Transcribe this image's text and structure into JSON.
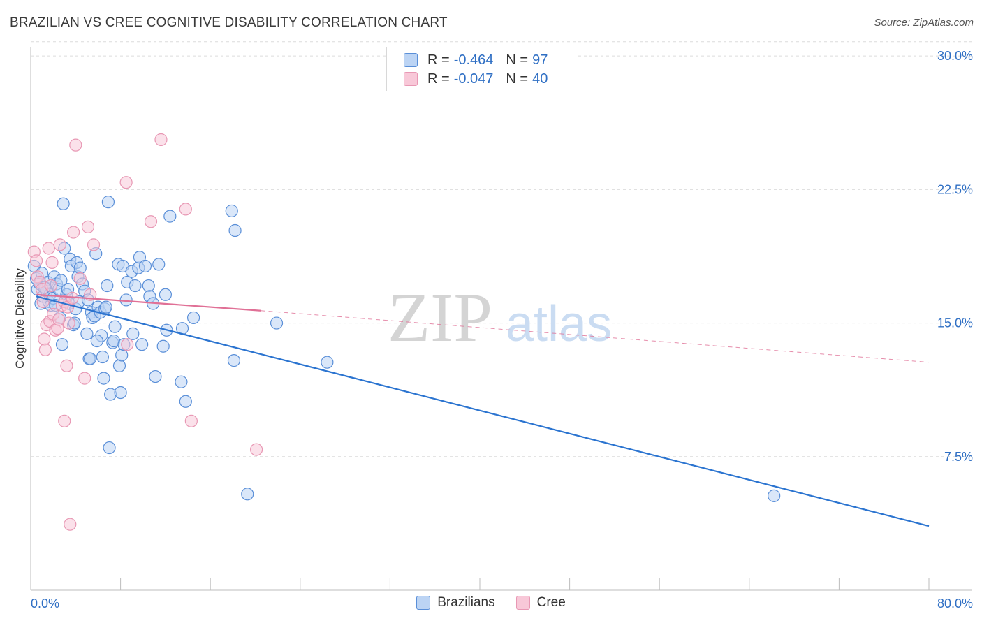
{
  "title": "BRAZILIAN VS CREE COGNITIVE DISABILITY CORRELATION CHART",
  "source": "Source: ZipAtlas.com",
  "watermark": {
    "zip": "ZIP",
    "atlas": "atlas"
  },
  "legend": {
    "rows": [
      {
        "r_label": "R =",
        "r_value": "-0.464",
        "n_label": "N =",
        "n_value": "97"
      },
      {
        "r_label": "R =",
        "r_value": "-0.047",
        "n_label": "N =",
        "n_value": "40"
      }
    ]
  },
  "colors": {
    "blue_fill": "#bcd4f4",
    "blue_stroke": "#5a8fd8",
    "blue_line": "#2b74d0",
    "pink_fill": "#f8c8d8",
    "pink_stroke": "#e898b4",
    "pink_line": "#e07096",
    "tick_text": "#2f6fc4",
    "grid": "#dcdcdc"
  },
  "chart_data": {
    "type": "scatter",
    "title": "BRAZILIAN VS CREE COGNITIVE DISABILITY CORRELATION CHART",
    "xlabel": "",
    "ylabel": "Cognitive Disability",
    "xlim": [
      0,
      80
    ],
    "ylim": [
      0,
      31
    ],
    "x_tick_labels": [
      "0.0%",
      "80.0%"
    ],
    "y_ticks": [
      7.5,
      15.0,
      22.5,
      30.0
    ],
    "y_tick_labels": [
      "7.5%",
      "15.0%",
      "22.5%",
      "30.0%"
    ],
    "grid": true,
    "legend_position": "top-center",
    "series": [
      {
        "name": "Brazilians",
        "r": -0.464,
        "n": 97,
        "trend": {
          "x": [
            0.5,
            80
          ],
          "y": [
            16.5,
            3.6
          ]
        },
        "points": [
          [
            0.3,
            18.2
          ],
          [
            0.5,
            17.5
          ],
          [
            0.6,
            16.9
          ],
          [
            0.8,
            17.2
          ],
          [
            0.9,
            16.1
          ],
          [
            1.0,
            17.8
          ],
          [
            1.1,
            16.5
          ],
          [
            1.3,
            17.0
          ],
          [
            1.4,
            16.8
          ],
          [
            1.5,
            17.3
          ],
          [
            1.6,
            16.2
          ],
          [
            1.7,
            16.6
          ],
          [
            1.8,
            16.0
          ],
          [
            2.0,
            16.4
          ],
          [
            2.1,
            17.6
          ],
          [
            2.3,
            17.2
          ],
          [
            2.5,
            16.9
          ],
          [
            2.6,
            15.3
          ],
          [
            2.8,
            13.8
          ],
          [
            2.9,
            21.7
          ],
          [
            3.0,
            19.2
          ],
          [
            3.1,
            16.3
          ],
          [
            3.2,
            16.6
          ],
          [
            3.4,
            16.1
          ],
          [
            3.5,
            18.6
          ],
          [
            3.6,
            18.2
          ],
          [
            3.8,
            14.9
          ],
          [
            3.9,
            15.0
          ],
          [
            4.0,
            15.8
          ],
          [
            4.1,
            18.4
          ],
          [
            4.2,
            17.6
          ],
          [
            4.4,
            18.1
          ],
          [
            4.6,
            17.2
          ],
          [
            4.8,
            16.8
          ],
          [
            5.0,
            14.4
          ],
          [
            5.2,
            13.0
          ],
          [
            5.3,
            13.0
          ],
          [
            5.4,
            15.6
          ],
          [
            5.5,
            15.3
          ],
          [
            5.7,
            15.4
          ],
          [
            5.8,
            18.9
          ],
          [
            6.0,
            15.9
          ],
          [
            6.2,
            15.6
          ],
          [
            6.3,
            14.3
          ],
          [
            6.5,
            11.9
          ],
          [
            6.6,
            15.8
          ],
          [
            6.7,
            15.9
          ],
          [
            6.8,
            17.1
          ],
          [
            6.9,
            21.8
          ],
          [
            7.0,
            8.0
          ],
          [
            7.1,
            11.0
          ],
          [
            7.3,
            13.9
          ],
          [
            7.4,
            14.0
          ],
          [
            7.5,
            14.8
          ],
          [
            7.8,
            18.3
          ],
          [
            7.9,
            12.6
          ],
          [
            8.0,
            11.1
          ],
          [
            8.1,
            13.2
          ],
          [
            8.2,
            18.2
          ],
          [
            8.3,
            13.8
          ],
          [
            8.5,
            16.3
          ],
          [
            8.6,
            17.3
          ],
          [
            9.0,
            17.9
          ],
          [
            9.3,
            17.1
          ],
          [
            9.6,
            18.1
          ],
          [
            9.7,
            18.7
          ],
          [
            9.9,
            13.8
          ],
          [
            10.2,
            18.2
          ],
          [
            10.5,
            17.1
          ],
          [
            10.6,
            16.5
          ],
          [
            10.9,
            16.1
          ],
          [
            11.1,
            12.0
          ],
          [
            11.4,
            18.3
          ],
          [
            11.8,
            13.7
          ],
          [
            12.0,
            16.6
          ],
          [
            12.1,
            14.6
          ],
          [
            12.4,
            21.0
          ],
          [
            13.4,
            11.7
          ],
          [
            13.5,
            14.7
          ],
          [
            13.8,
            10.6
          ],
          [
            14.5,
            15.3
          ],
          [
            17.9,
            21.3
          ],
          [
            18.1,
            12.9
          ],
          [
            18.2,
            20.2
          ],
          [
            19.3,
            5.4
          ],
          [
            21.9,
            15.0
          ],
          [
            26.4,
            12.8
          ],
          [
            66.2,
            5.3
          ],
          [
            2.2,
            16.0
          ],
          [
            4.3,
            16.2
          ],
          [
            5.9,
            14.0
          ],
          [
            3.3,
            16.9
          ],
          [
            1.2,
            17.0
          ],
          [
            6.4,
            13.1
          ],
          [
            9.1,
            14.4
          ],
          [
            2.7,
            17.4
          ],
          [
            5.1,
            16.3
          ]
        ]
      },
      {
        "name": "Cree",
        "r": -0.047,
        "n": 40,
        "trend": {
          "x": [
            0.5,
            20.5
          ],
          "y": [
            16.6,
            15.7
          ],
          "dashed_to": {
            "x": 80,
            "y": 12.8
          }
        },
        "points": [
          [
            0.3,
            19.0
          ],
          [
            0.5,
            18.5
          ],
          [
            0.6,
            17.6
          ],
          [
            0.8,
            17.3
          ],
          [
            1.0,
            16.9
          ],
          [
            1.1,
            16.2
          ],
          [
            1.2,
            14.1
          ],
          [
            1.3,
            13.5
          ],
          [
            1.4,
            14.9
          ],
          [
            1.6,
            19.2
          ],
          [
            1.7,
            15.1
          ],
          [
            1.8,
            17.1
          ],
          [
            1.9,
            18.4
          ],
          [
            2.0,
            15.5
          ],
          [
            2.2,
            14.6
          ],
          [
            2.4,
            14.7
          ],
          [
            2.6,
            19.4
          ],
          [
            2.8,
            16.0
          ],
          [
            3.0,
            16.2
          ],
          [
            3.0,
            9.5
          ],
          [
            3.2,
            12.6
          ],
          [
            3.3,
            15.9
          ],
          [
            3.4,
            15.0
          ],
          [
            3.5,
            3.7
          ],
          [
            3.7,
            16.4
          ],
          [
            3.8,
            20.1
          ],
          [
            4.0,
            25.0
          ],
          [
            4.4,
            17.5
          ],
          [
            4.8,
            11.9
          ],
          [
            5.1,
            20.4
          ],
          [
            5.3,
            16.6
          ],
          [
            5.6,
            19.4
          ],
          [
            8.5,
            22.9
          ],
          [
            8.6,
            13.8
          ],
          [
            10.7,
            20.7
          ],
          [
            11.6,
            25.3
          ],
          [
            13.8,
            21.4
          ],
          [
            14.3,
            9.5
          ],
          [
            20.1,
            7.9
          ],
          [
            2.5,
            15.2
          ]
        ]
      }
    ]
  }
}
